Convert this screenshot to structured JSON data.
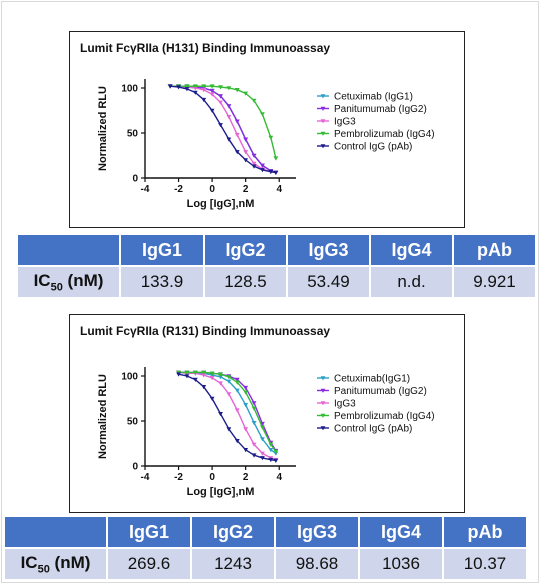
{
  "legend_labels": {
    "top": [
      "Cetuximab (IgG1)",
      "Panitumumab (IgG2)",
      "IgG3",
      "Pembrolizumab (IgG4)",
      "Control IgG (pAb)"
    ],
    "bottom": [
      "Cetuximab(IgG1)",
      "Panitumumab (IgG2)",
      "IgG3",
      "Pembrolizumab (IgG4)",
      "Control IgG (pAb)"
    ]
  },
  "series_colors": [
    "#2aa0c8",
    "#8a2be2",
    "#e565d6",
    "#33bb33",
    "#1c1c8c"
  ],
  "tables": [
    {
      "row_label": "IC",
      "row_label_sub": "50",
      "row_label_unit": " (nM)",
      "headers": [
        "IgG1",
        "IgG2",
        "IgG3",
        "IgG4",
        "pAb"
      ],
      "values": [
        "133.9",
        "128.5",
        "53.49",
        "n.d.",
        "9.921"
      ]
    },
    {
      "row_label": "IC",
      "row_label_sub": "50",
      "row_label_unit": " (nM)",
      "headers": [
        "IgG1",
        "IgG2",
        "IgG3",
        "IgG4",
        "pAb"
      ],
      "values": [
        "269.6",
        "1243",
        "98.68",
        "1036",
        "10.37"
      ]
    }
  ],
  "chart_data": [
    {
      "type": "line",
      "title": "Lumit FcγRIIa (H131) Binding Immunoassay",
      "xlabel": "Log [IgG],nM",
      "ylabel": "Normalized RLU",
      "xlim": [
        -4,
        5
      ],
      "ylim": [
        0,
        110
      ],
      "xticks": [
        -4,
        -2,
        0,
        2,
        4
      ],
      "yticks": [
        0,
        50,
        100
      ],
      "grid": false,
      "legend": "right",
      "x": [
        -2.5,
        -2,
        -1.5,
        -1,
        -0.5,
        0,
        0.5,
        1,
        1.5,
        2,
        2.5,
        3,
        3.5,
        3.8
      ],
      "series": [
        {
          "name": "Cetuximab (IgG1)",
          "values": [
            102,
            102,
            102,
            101,
            100,
            97,
            91,
            80,
            63,
            43,
            25,
            14,
            8,
            6
          ]
        },
        {
          "name": "Panitumumab (IgG2)",
          "values": [
            102,
            102,
            102,
            101,
            100,
            97,
            91,
            80,
            63,
            43,
            25,
            14,
            8,
            6
          ]
        },
        {
          "name": "IgG3",
          "values": [
            102,
            102,
            101,
            100,
            98,
            93,
            84,
            68,
            48,
            29,
            16,
            10,
            7,
            6
          ]
        },
        {
          "name": "Pembrolizumab (IgG4)",
          "values": [
            102,
            102,
            102,
            102,
            102,
            102,
            101,
            100,
            98,
            94,
            86,
            71,
            45,
            22
          ]
        },
        {
          "name": "Control IgG (pAb)",
          "values": [
            102,
            101,
            99,
            95,
            87,
            75,
            59,
            43,
            29,
            20,
            13,
            9,
            7,
            6
          ]
        }
      ]
    },
    {
      "type": "line",
      "title": "Lumit FcγRIIa (R131) Binding Immunoassay",
      "xlabel": "Log [IgG],nM",
      "ylabel": "Normalized RLU",
      "xlim": [
        -4,
        5
      ],
      "ylim": [
        0,
        110
      ],
      "xticks": [
        -4,
        -2,
        0,
        2,
        4
      ],
      "yticks": [
        0,
        50,
        100
      ],
      "grid": false,
      "legend": "right",
      "x": [
        -2,
        -1.5,
        -1,
        -0.5,
        0,
        0.5,
        1,
        1.5,
        2,
        2.5,
        3,
        3.5,
        3.8
      ],
      "series": [
        {
          "name": "Cetuximab(IgG1)",
          "values": [
            104,
            104,
            103,
            103,
            101,
            99,
            94,
            84,
            68,
            48,
            30,
            18,
            14
          ]
        },
        {
          "name": "Panitumumab (IgG2)",
          "values": [
            104,
            104,
            104,
            104,
            103,
            102,
            100,
            96,
            87,
            70,
            47,
            26,
            17
          ]
        },
        {
          "name": "IgG3",
          "values": [
            104,
            103,
            103,
            101,
            98,
            92,
            80,
            62,
            41,
            24,
            14,
            9,
            7
          ]
        },
        {
          "name": "Pembrolizumab (IgG4)",
          "values": [
            104,
            104,
            104,
            104,
            103,
            102,
            99,
            93,
            82,
            64,
            43,
            24,
            16
          ]
        },
        {
          "name": "Control IgG (pAb)",
          "values": [
            102,
            100,
            96,
            88,
            75,
            58,
            41,
            28,
            18,
            12,
            9,
            7,
            6
          ]
        }
      ]
    }
  ]
}
